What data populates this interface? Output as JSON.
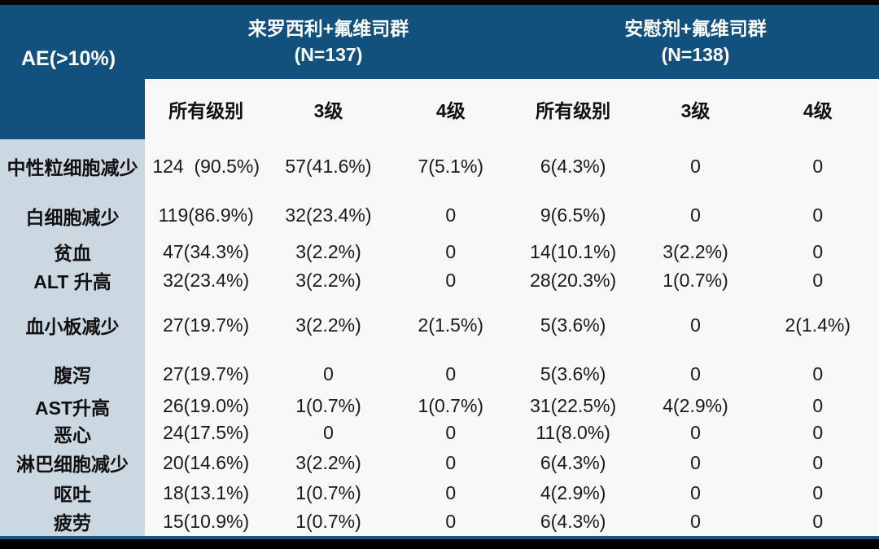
{
  "chart_data": {
    "type": "table",
    "row_header": "AE(>10%)",
    "column_groups": [
      {
        "name": "来罗西利+氟维司群",
        "n": "(N=137)",
        "columns": [
          "所有级别",
          "3级",
          "4级"
        ]
      },
      {
        "name": "安慰剂+氟维司群",
        "n": "(N=138)",
        "columns": [
          "所有级别",
          "3级",
          "4级"
        ]
      }
    ],
    "rows": [
      {
        "label": "中性粒细胞减少",
        "values": [
          "124  (90.5%)",
          "57(41.6%)",
          "7(5.1%)",
          "6(4.3%)",
          "0",
          "0"
        ]
      },
      {
        "label": "白细胞减少",
        "values": [
          "119(86.9%)",
          "32(23.4%)",
          "0",
          "9(6.5%)",
          "0",
          "0"
        ]
      },
      {
        "label": "贫血",
        "values": [
          "47(34.3%)",
          "3(2.2%)",
          "0",
          "14(10.1%)",
          "3(2.2%)",
          "0"
        ]
      },
      {
        "label": "ALT 升高",
        "values": [
          "32(23.4%)",
          "3(2.2%)",
          "0",
          "28(20.3%)",
          "1(0.7%)",
          "0"
        ]
      },
      {
        "label": "血小板减少",
        "values": [
          "27(19.7%)",
          "3(2.2%)",
          "2(1.5%)",
          "5(3.6%)",
          "0",
          "2(1.4%)"
        ]
      },
      {
        "label": "腹泻",
        "values": [
          "27(19.7%)",
          "0",
          "0",
          "5(3.6%)",
          "0",
          "0"
        ]
      },
      {
        "label": "AST升高",
        "values": [
          "26(19.0%)",
          "1(0.7%)",
          "1(0.7%)",
          "31(22.5%)",
          "4(2.9%)",
          "0"
        ]
      },
      {
        "label": "恶心",
        "values": [
          "24(17.5%)",
          "0",
          "0",
          "11(8.0%)",
          "0",
          "0"
        ]
      },
      {
        "label": "淋巴细胞减少",
        "values": [
          "20(14.6%)",
          "3(2.2%)",
          "0",
          "6(4.3%)",
          "0",
          "0"
        ]
      },
      {
        "label": "呕吐",
        "values": [
          "18(13.1%)",
          "1(0.7%)",
          "0",
          "4(2.9%)",
          "0",
          "0"
        ]
      },
      {
        "label": "疲劳",
        "values": [
          "15(10.9%)",
          "1(0.7%)",
          "0",
          "6(4.3%)",
          "0",
          "0"
        ]
      }
    ],
    "colors": {
      "header_blue": "#12517e",
      "label_column_bg": "#cbd8e2",
      "body_bg": "#f8f8f8",
      "border_black": "#000000",
      "bottom_line_blue": "#1b5384"
    }
  }
}
